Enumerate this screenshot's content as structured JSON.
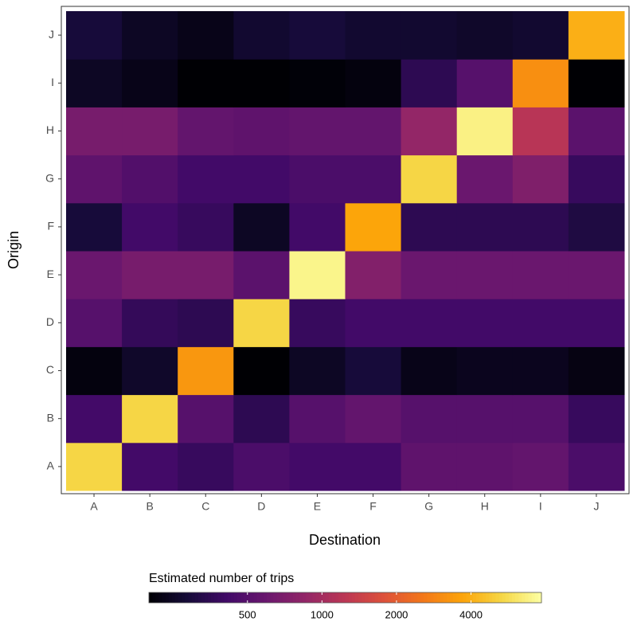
{
  "chart_data": {
    "type": "heatmap",
    "x_label": "Destination",
    "y_label": "Origin",
    "x": [
      "A",
      "B",
      "C",
      "D",
      "E",
      "F",
      "G",
      "H",
      "I",
      "J"
    ],
    "y": [
      "A",
      "B",
      "C",
      "D",
      "E",
      "F",
      "G",
      "H",
      "I",
      "J"
    ],
    "values": [
      [
        5300,
        420,
        380,
        450,
        420,
        420,
        540,
        540,
        560,
        450
      ],
      [
        420,
        5300,
        500,
        350,
        500,
        560,
        500,
        500,
        500,
        380
      ],
      [
        215,
        260,
        3300,
        200,
        250,
        290,
        230,
        240,
        240,
        220
      ],
      [
        500,
        370,
        350,
        5300,
        380,
        415,
        415,
        415,
        415,
        415
      ],
      [
        600,
        670,
        670,
        520,
        7000,
        740,
        600,
        600,
        600,
        600
      ],
      [
        290,
        415,
        380,
        250,
        415,
        3700,
        350,
        350,
        350,
        310
      ],
      [
        540,
        480,
        415,
        415,
        450,
        450,
        5300,
        600,
        720,
        380
      ],
      [
        670,
        670,
        560,
        540,
        560,
        560,
        860,
        6800,
        1200,
        520
      ],
      [
        250,
        230,
        200,
        200,
        205,
        215,
        350,
        500,
        3100,
        200
      ],
      [
        290,
        250,
        230,
        270,
        290,
        270,
        270,
        260,
        270,
        4000
      ]
    ],
    "colormap": "inferno",
    "colorbar": {
      "title": "Estimated number of trips",
      "lim": [
        200,
        7700
      ],
      "ticks": [
        500,
        1000,
        2000,
        4000
      ],
      "log": true
    }
  }
}
